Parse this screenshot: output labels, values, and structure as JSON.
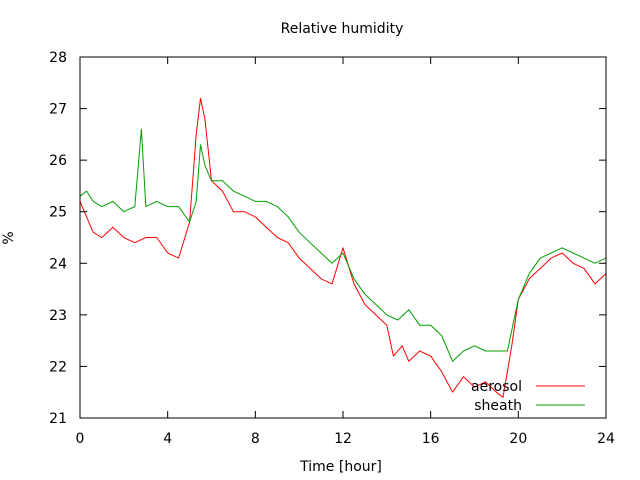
{
  "chart_data": {
    "type": "line",
    "title": "Relative humidity",
    "xlabel": "Time [hour]",
    "ylabel": "%",
    "xlim": [
      0,
      24
    ],
    "ylim": [
      21,
      28
    ],
    "xticks": [
      0,
      4,
      8,
      12,
      16,
      20,
      24
    ],
    "yticks": [
      21,
      22,
      23,
      24,
      25,
      26,
      27,
      28
    ],
    "grid": false,
    "legend_position": "bottom-right",
    "series": [
      {
        "name": "aerosol",
        "color": "#ff0000",
        "x": [
          0,
          0.3,
          0.6,
          1,
          1.5,
          2,
          2.5,
          3,
          3.5,
          4,
          4.5,
          5,
          5.3,
          5.5,
          5.7,
          6,
          6.5,
          7,
          7.5,
          8,
          8.5,
          9,
          9.5,
          10,
          10.5,
          11,
          11.5,
          12,
          12.5,
          13,
          13.5,
          14,
          14.3,
          14.7,
          15,
          15.5,
          16,
          16.5,
          17,
          17.5,
          18,
          18.5,
          19,
          19.3,
          19.7,
          20,
          20.5,
          21,
          21.5,
          22,
          22.5,
          23,
          23.5,
          24
        ],
        "y": [
          25.2,
          24.9,
          24.6,
          24.5,
          24.7,
          24.5,
          24.4,
          24.5,
          24.5,
          24.2,
          24.1,
          24.8,
          26.5,
          27.2,
          26.8,
          25.6,
          25.4,
          25.0,
          25.0,
          24.9,
          24.7,
          24.5,
          24.4,
          24.1,
          23.9,
          23.7,
          23.6,
          24.3,
          23.6,
          23.2,
          23.0,
          22.8,
          22.2,
          22.4,
          22.1,
          22.3,
          22.2,
          21.9,
          21.5,
          21.8,
          21.6,
          21.7,
          21.5,
          21.4,
          22.4,
          23.3,
          23.7,
          23.9,
          24.1,
          24.2,
          24.0,
          23.9,
          23.6,
          23.8
        ]
      },
      {
        "name": "sheath",
        "color": "#00a000",
        "x": [
          0,
          0.3,
          0.6,
          1,
          1.5,
          2,
          2.5,
          2.8,
          3,
          3.5,
          4,
          4.5,
          5,
          5.3,
          5.5,
          5.7,
          6,
          6.5,
          7,
          7.5,
          8,
          8.5,
          9,
          9.5,
          10,
          10.5,
          11,
          11.5,
          12,
          12.5,
          13,
          13.5,
          14,
          14.5,
          15,
          15.5,
          16,
          16.5,
          17,
          17.5,
          18,
          18.5,
          19,
          19.5,
          20,
          20.5,
          21,
          21.5,
          22,
          22.5,
          23,
          23.5,
          24
        ],
        "y": [
          25.3,
          25.4,
          25.2,
          25.1,
          25.2,
          25.0,
          25.1,
          26.6,
          25.1,
          25.2,
          25.1,
          25.1,
          24.8,
          25.2,
          26.3,
          25.9,
          25.6,
          25.6,
          25.4,
          25.3,
          25.2,
          25.2,
          25.1,
          24.9,
          24.6,
          24.4,
          24.2,
          24.0,
          24.2,
          23.7,
          23.4,
          23.2,
          23.0,
          22.9,
          23.1,
          22.8,
          22.8,
          22.6,
          22.1,
          22.3,
          22.4,
          22.3,
          22.3,
          22.3,
          23.3,
          23.8,
          24.1,
          24.2,
          24.3,
          24.2,
          24.1,
          24.0,
          24.1
        ]
      }
    ]
  }
}
